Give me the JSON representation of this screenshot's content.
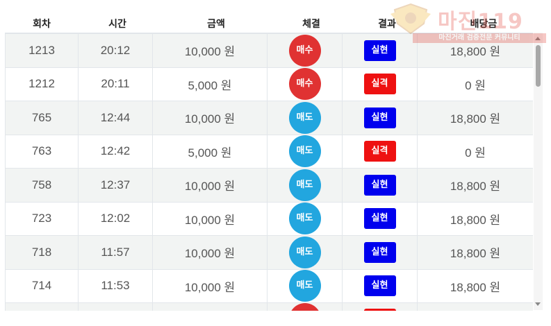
{
  "columns": [
    "회차",
    "시간",
    "금액",
    "체결",
    "결과",
    "배당금"
  ],
  "rows": [
    {
      "round": "1213",
      "time": "20:12",
      "amount": "10,000 원",
      "trade": "매수",
      "trade_type": "buy",
      "result": "실현",
      "result_type": "win",
      "payout": "18,800 원"
    },
    {
      "round": "1212",
      "time": "20:11",
      "amount": "5,000 원",
      "trade": "매수",
      "trade_type": "buy",
      "result": "실격",
      "result_type": "lose",
      "payout": "0 원"
    },
    {
      "round": "765",
      "time": "12:44",
      "amount": "10,000 원",
      "trade": "매도",
      "trade_type": "sell",
      "result": "실현",
      "result_type": "win",
      "payout": "18,800 원"
    },
    {
      "round": "763",
      "time": "12:42",
      "amount": "5,000 원",
      "trade": "매도",
      "trade_type": "sell",
      "result": "실격",
      "result_type": "lose",
      "payout": "0 원"
    },
    {
      "round": "758",
      "time": "12:37",
      "amount": "10,000 원",
      "trade": "매도",
      "trade_type": "sell",
      "result": "실현",
      "result_type": "win",
      "payout": "18,800 원"
    },
    {
      "round": "723",
      "time": "12:02",
      "amount": "10,000 원",
      "trade": "매도",
      "trade_type": "sell",
      "result": "실현",
      "result_type": "win",
      "payout": "18,800 원"
    },
    {
      "round": "718",
      "time": "11:57",
      "amount": "10,000 원",
      "trade": "매도",
      "trade_type": "sell",
      "result": "실현",
      "result_type": "win",
      "payout": "18,800 원"
    },
    {
      "round": "714",
      "time": "11:53",
      "amount": "10,000 원",
      "trade": "매도",
      "trade_type": "sell",
      "result": "실현",
      "result_type": "win",
      "payout": "18,800 원"
    },
    {
      "round": "",
      "time": "",
      "amount": "",
      "trade": "",
      "trade_type": "buy",
      "result": "",
      "result_type": "lose",
      "payout": ""
    }
  ],
  "watermark": {
    "title": "마진119",
    "subtitle": "마진거래 검증전문 커뮤니티"
  },
  "colors": {
    "buy": "#e03232",
    "sell": "#22a6df",
    "win": "#0000ee",
    "lose": "#ee1111"
  },
  "icons": {
    "logo": "shield-emblem-icon"
  }
}
